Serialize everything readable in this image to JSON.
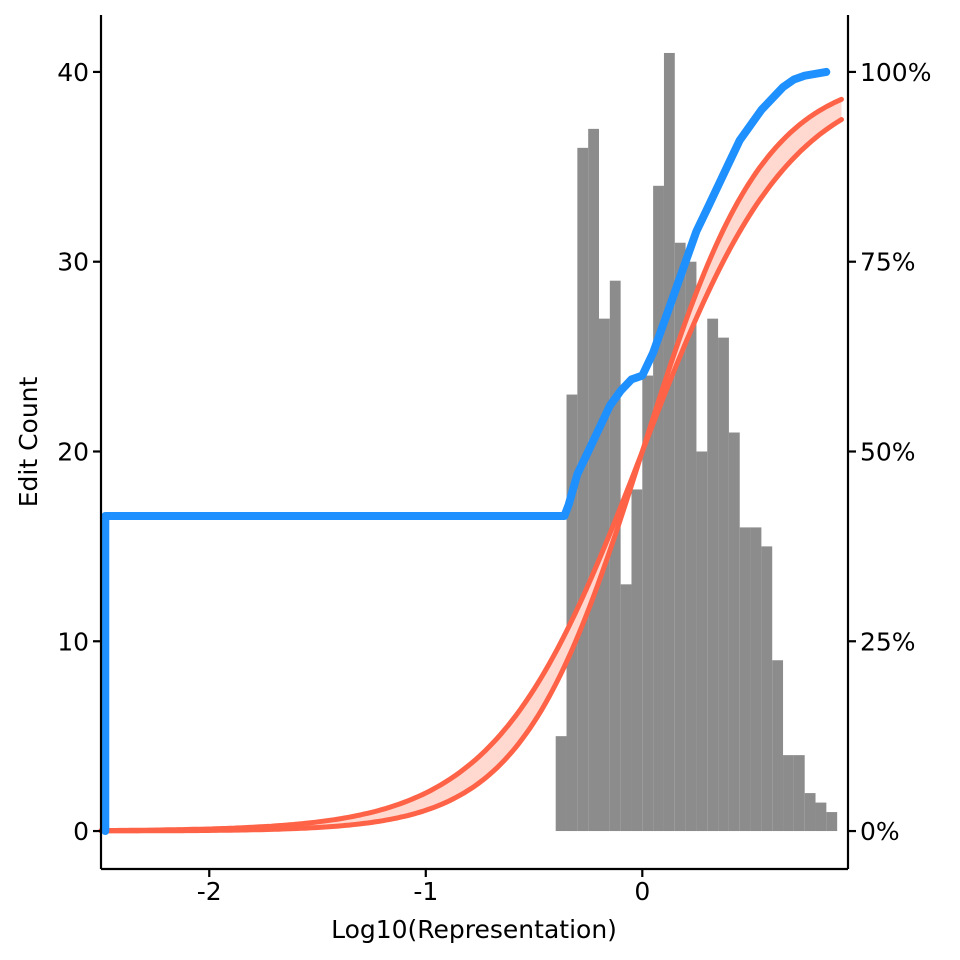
{
  "chart_data": {
    "type": "bar",
    "xlabel": "Log10(Representation)",
    "ylabel": "Edit Count",
    "xlim": [
      -2.5,
      0.95
    ],
    "ylim": [
      -2,
      43
    ],
    "xticks": [
      -2,
      -1,
      0
    ],
    "yticks": [
      0,
      10,
      20,
      30,
      40
    ],
    "y2ticks": [
      "0%",
      "25%",
      "50%",
      "75%",
      "100%"
    ],
    "grid": false,
    "histogram": {
      "bin_width": 0.05,
      "bins": [
        {
          "x": -0.375,
          "count": 5
        },
        {
          "x": -0.325,
          "count": 23
        },
        {
          "x": -0.275,
          "count": 36
        },
        {
          "x": -0.225,
          "count": 37
        },
        {
          "x": -0.175,
          "count": 27
        },
        {
          "x": -0.125,
          "count": 29
        },
        {
          "x": -0.075,
          "count": 13
        },
        {
          "x": -0.025,
          "count": 18
        },
        {
          "x": 0.025,
          "count": 24
        },
        {
          "x": 0.075,
          "count": 34
        },
        {
          "x": 0.125,
          "count": 41
        },
        {
          "x": 0.175,
          "count": 31
        },
        {
          "x": 0.225,
          "count": 30
        },
        {
          "x": 0.275,
          "count": 20
        },
        {
          "x": 0.325,
          "count": 27
        },
        {
          "x": 0.375,
          "count": 26
        },
        {
          "x": 0.425,
          "count": 21
        },
        {
          "x": 0.475,
          "count": 16
        },
        {
          "x": 0.525,
          "count": 16
        },
        {
          "x": 0.575,
          "count": 15
        },
        {
          "x": 0.625,
          "count": 9
        },
        {
          "x": 0.675,
          "count": 4
        },
        {
          "x": 0.725,
          "count": 4
        },
        {
          "x": 0.775,
          "count": 2
        },
        {
          "x": 0.825,
          "count": 1.5
        },
        {
          "x": 0.875,
          "count": 1
        }
      ]
    },
    "series": [
      {
        "kind": "empirical-cumulative",
        "color": "#1e90ff",
        "points": [
          [
            -2.48,
            0.0
          ],
          [
            -2.48,
            0.415
          ],
          [
            -0.36,
            0.415
          ],
          [
            -0.34,
            0.43
          ],
          [
            -0.3,
            0.47
          ],
          [
            -0.25,
            0.5
          ],
          [
            -0.2,
            0.53
          ],
          [
            -0.15,
            0.56
          ],
          [
            -0.1,
            0.58
          ],
          [
            -0.05,
            0.595
          ],
          [
            0.0,
            0.6
          ],
          [
            0.05,
            0.63
          ],
          [
            0.1,
            0.67
          ],
          [
            0.15,
            0.71
          ],
          [
            0.2,
            0.75
          ],
          [
            0.25,
            0.79
          ],
          [
            0.3,
            0.82
          ],
          [
            0.35,
            0.85
          ],
          [
            0.4,
            0.88
          ],
          [
            0.45,
            0.91
          ],
          [
            0.5,
            0.93
          ],
          [
            0.55,
            0.95
          ],
          [
            0.6,
            0.965
          ],
          [
            0.65,
            0.98
          ],
          [
            0.7,
            0.99
          ],
          [
            0.75,
            0.995
          ],
          [
            0.85,
            1.0
          ]
        ]
      },
      {
        "kind": "fitted-cumulative-band",
        "color": "#ff6347",
        "fill": "#ffd8d0",
        "center": 0.0,
        "lower_scale": 0.28,
        "upper_scale": 0.34,
        "x_from": -2.5,
        "x_to": 0.92
      }
    ]
  }
}
